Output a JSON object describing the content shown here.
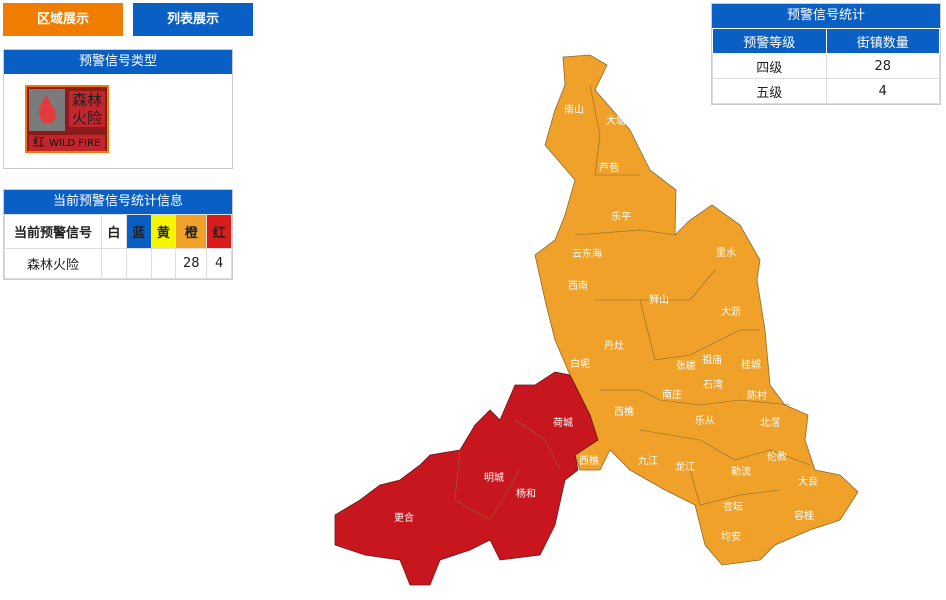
{
  "tabs": [
    "区域展示",
    "列表展示"
  ],
  "signal_type": {
    "title": "预警信号类型",
    "icon": {
      "lines": [
        "森林",
        "火险"
      ],
      "level": "红",
      "english": "WILD FIRE"
    }
  },
  "stats": {
    "title": "当前预警信号统计信息",
    "columns": [
      "当前预警信号",
      "白",
      "蓝",
      "黄",
      "橙",
      "红"
    ],
    "rows": [
      {
        "signal": "森林火险",
        "orange": 28,
        "red": 4
      }
    ]
  },
  "summary": {
    "title": "预警信号统计",
    "columns": [
      "预警等级",
      "街镇数量"
    ],
    "rows": [
      [
        "四级",
        28
      ],
      [
        "五级",
        4
      ]
    ]
  },
  "map": {
    "labels": [
      "南山",
      "大塘",
      "芦苞",
      "乐平",
      "云东海",
      "西南",
      "狮山",
      "里水",
      "大沥",
      "丹灶",
      "白坭",
      "张槎",
      "祖庙",
      "桂城",
      "石湾",
      "南庄",
      "陈村",
      "西樵",
      "九江",
      "乐从",
      "北滘",
      "龙江",
      "伦教",
      "勒流",
      "大良",
      "杏坛",
      "容桂",
      "均安",
      "荷城",
      "西樵",
      "明城",
      "杨和",
      "更合"
    ]
  }
}
